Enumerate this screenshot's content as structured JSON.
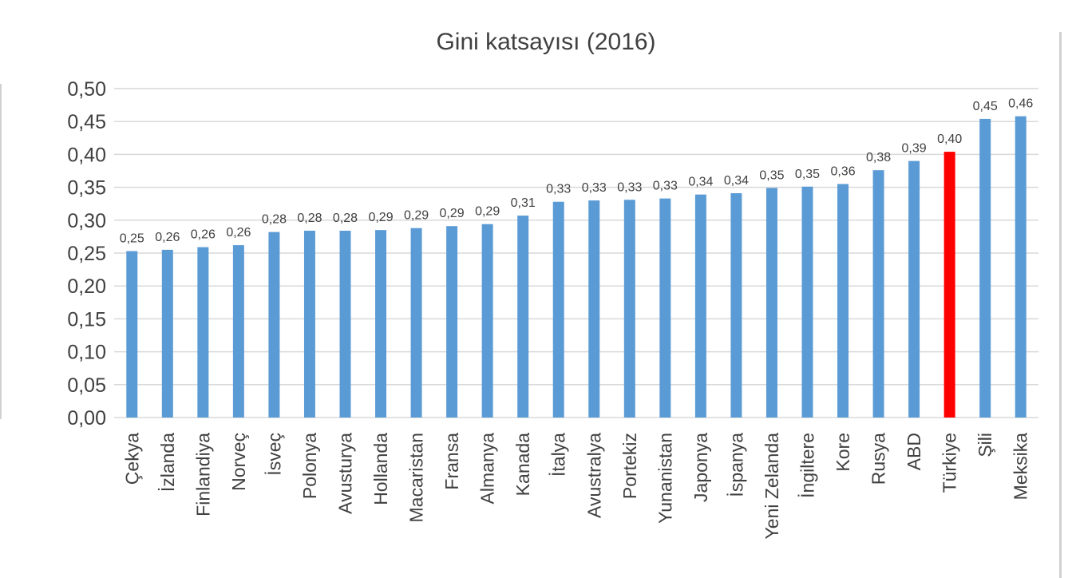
{
  "chart_data": {
    "type": "bar",
    "title": "Gini katsayısı (2016)",
    "xlabel": "",
    "ylabel": "",
    "ylim": [
      0,
      0.5
    ],
    "yticks": [
      "0,00",
      "0,05",
      "0,10",
      "0,15",
      "0,20",
      "0,25",
      "0,30",
      "0,35",
      "0,40",
      "0,45",
      "0,50"
    ],
    "grid": true,
    "categories": [
      "Çekya",
      "İzlanda",
      "Finlandiya",
      "Norveç",
      "İsveç",
      "Polonya",
      "Avusturya",
      "Hollanda",
      "Macaristan",
      "Fransa",
      "Almanya",
      "Kanada",
      "İtalya",
      "Avustralya",
      "Portekiz",
      "Yunanistan",
      "Japonya",
      "İspanya",
      "Yeni Zelanda",
      "İngiltere",
      "Kore",
      "Rusya",
      "ABD",
      "Türkiye",
      "Şili",
      "Meksika"
    ],
    "values": [
      0.253,
      0.255,
      0.259,
      0.262,
      0.282,
      0.284,
      0.284,
      0.285,
      0.288,
      0.291,
      0.294,
      0.307,
      0.328,
      0.33,
      0.331,
      0.333,
      0.339,
      0.341,
      0.349,
      0.351,
      0.355,
      0.376,
      0.39,
      0.404,
      0.454,
      0.458
    ],
    "labels": [
      "0,25",
      "0,26",
      "0,26",
      "0,26",
      "0,28",
      "0,28",
      "0,28",
      "0,29",
      "0,29",
      "0,29",
      "0,29",
      "0,31",
      "0,33",
      "0,33",
      "0,33",
      "0,33",
      "0,34",
      "0,34",
      "0,35",
      "0,35",
      "0,36",
      "0,38",
      "0,39",
      "0,40",
      "0,45",
      "0,46"
    ],
    "colors": {
      "default": "#5b9bd5",
      "highlight": "#ff0000"
    },
    "highlight": "Türkiye"
  }
}
